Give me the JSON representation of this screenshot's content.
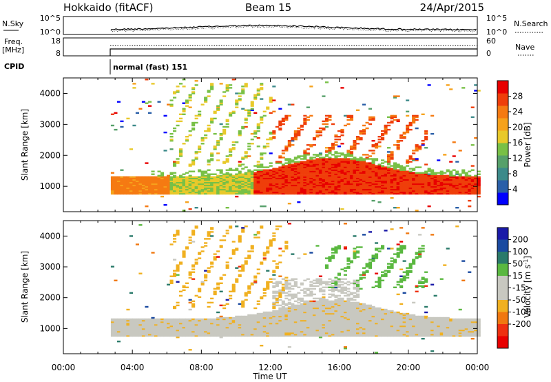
{
  "header": {
    "station": "Hokkaido (fitACF)",
    "beam": "Beam 15",
    "date": "24/Apr/2015"
  },
  "top_panels": {
    "nsky_label": "N.Sky",
    "nsky_ticks": [
      "10^5",
      "10^0"
    ],
    "nsearch_label": "N.Search",
    "freq_label_1": "Freq.",
    "freq_label_2": "[MHz]",
    "freq_ticks": [
      "18",
      "8"
    ],
    "nave_label": "Nave",
    "nave_ticks": [
      "60",
      "0"
    ],
    "cpid_label": "CPID",
    "cpid_text": "normal (fast) 151"
  },
  "chart_data": [
    {
      "type": "heatmap",
      "panel": "power",
      "x": {
        "label": "Time UT",
        "range_hours": [
          0,
          24
        ],
        "ticks": [
          "00:00",
          "04:00",
          "08:00",
          "12:00",
          "16:00",
          "20:00",
          "00:00"
        ]
      },
      "y": {
        "label": "Slant Range [km]",
        "range": [
          180,
          4500
        ],
        "ticks": [
          "1000",
          "2000",
          "3000",
          "4000"
        ]
      },
      "colorbar": {
        "label": "Power [dB]",
        "range": [
          0,
          32
        ],
        "ticks": [
          "4",
          "8",
          "12",
          "16",
          "20",
          "24",
          "28"
        ],
        "colors": [
          "#0000ff",
          "#2a5fa8",
          "#3c8a8a",
          "#56a06a",
          "#78c046",
          "#e8c92a",
          "#f6a21c",
          "#f57a12",
          "#ef3e0a",
          "#e80000"
        ]
      },
      "data_start_hour": 2.75,
      "bands": [
        {
          "name": "near-range band",
          "range_km": [
            700,
            1400
          ],
          "time_hours": [
            2.75,
            24
          ],
          "power_db": 22
        },
        {
          "name": "far-range band",
          "range_km": [
            1500,
            3300
          ],
          "time_hours": [
            12,
            21
          ],
          "power_db": 26
        }
      ]
    },
    {
      "type": "heatmap",
      "panel": "velocity",
      "x": {
        "label": "Time UT",
        "range_hours": [
          0,
          24
        ],
        "ticks": [
          "00:00",
          "04:00",
          "08:00",
          "12:00",
          "16:00",
          "20:00",
          "00:00"
        ]
      },
      "y": {
        "label": "Slant Range [km]",
        "range": [
          180,
          4500
        ],
        "ticks": [
          "1000",
          "2000",
          "3000",
          "4000"
        ]
      },
      "colorbar": {
        "label": "Velocity [m s^-1]",
        "range": [
          -250,
          250
        ],
        "ticks": [
          "200",
          "100",
          "50",
          "15",
          "-15",
          "-50",
          "-100",
          "-200"
        ],
        "colors": [
          "#1a1aa8",
          "#1a4aa0",
          "#2a7a6a",
          "#5ab840",
          "#c8c8c0",
          "#c8c8c0",
          "#f0b020",
          "#f07810",
          "#ee3010",
          "#e80000"
        ]
      },
      "data_start_hour": 2.75,
      "bands": [
        {
          "name": "ground scatter",
          "range_km": [
            700,
            1400
          ],
          "time_hours": [
            2.75,
            24
          ],
          "velocity": 0
        },
        {
          "name": "positive velocity echoes",
          "range_km": [
            2200,
            3800
          ],
          "time_hours": [
            15,
            21
          ],
          "velocity": 50
        },
        {
          "name": "negative velocity echoes",
          "range_km": [
            1700,
            4300
          ],
          "time_hours": [
            6,
            13
          ],
          "velocity": -50
        }
      ]
    }
  ]
}
